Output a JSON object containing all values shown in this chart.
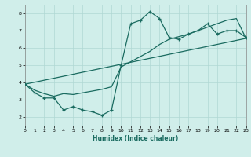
{
  "xlabel": "Humidex (Indice chaleur)",
  "background_color": "#d0eeea",
  "grid_color": "#b0d8d4",
  "line_color": "#1a6b60",
  "xlim": [
    0,
    23
  ],
  "ylim": [
    1.5,
    8.5
  ],
  "xticks": [
    0,
    1,
    2,
    3,
    4,
    5,
    6,
    7,
    8,
    9,
    10,
    11,
    12,
    13,
    14,
    15,
    16,
    17,
    18,
    19,
    20,
    21,
    22,
    23
  ],
  "yticks": [
    2,
    3,
    4,
    5,
    6,
    7,
    8
  ],
  "series1_x": [
    0,
    1,
    2,
    3,
    4,
    5,
    6,
    7,
    8,
    9,
    10,
    11,
    12,
    13,
    14,
    15,
    16,
    17,
    18,
    19,
    20,
    21,
    22,
    23
  ],
  "series1_y": [
    3.9,
    3.4,
    3.1,
    3.1,
    2.4,
    2.6,
    2.4,
    2.3,
    2.1,
    2.4,
    5.0,
    7.4,
    7.6,
    8.1,
    7.7,
    6.6,
    6.5,
    6.8,
    7.0,
    7.4,
    6.8,
    7.0,
    7.0,
    6.6
  ],
  "series2_x": [
    0,
    1,
    2,
    3,
    4,
    5,
    6,
    7,
    8,
    9,
    10,
    11,
    12,
    13,
    14,
    15,
    16,
    17,
    18,
    19,
    20,
    21,
    22,
    23
  ],
  "series2_y": [
    3.9,
    3.55,
    3.35,
    3.2,
    3.35,
    3.3,
    3.4,
    3.5,
    3.6,
    3.75,
    4.9,
    5.2,
    5.5,
    5.8,
    6.2,
    6.5,
    6.65,
    6.8,
    7.0,
    7.2,
    7.4,
    7.6,
    7.7,
    6.55
  ],
  "series3_x": [
    0,
    23
  ],
  "series3_y": [
    3.9,
    6.55
  ]
}
